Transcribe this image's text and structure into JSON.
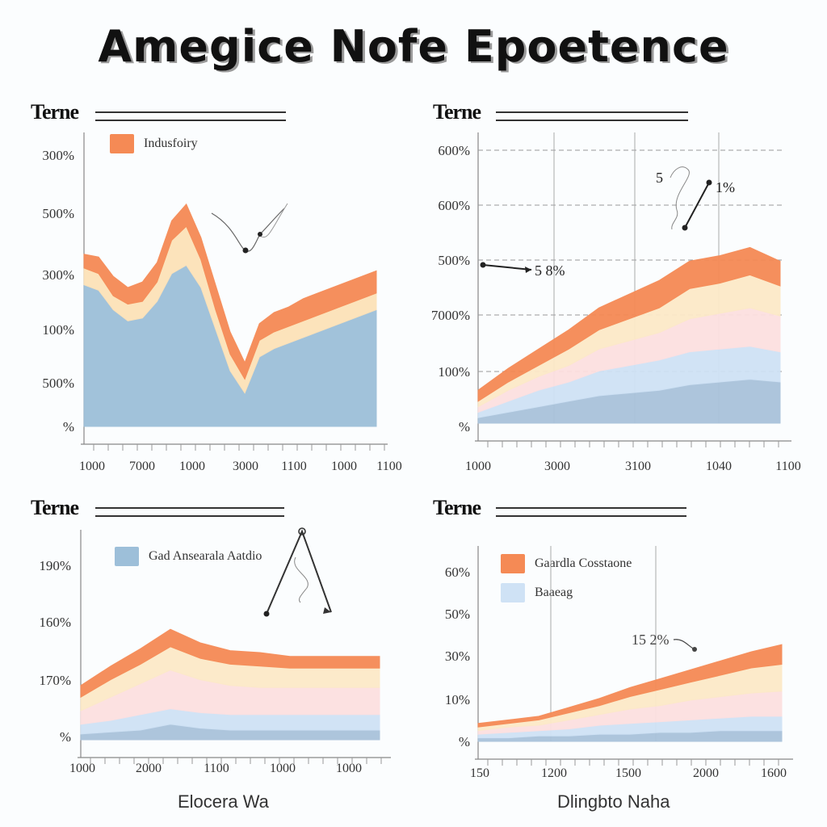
{
  "title": "Amegice Nofe Epoetence",
  "chart_data": [
    {
      "type": "area",
      "heading": "Terne",
      "legend": [
        {
          "label": "Indusfoiry",
          "color": "#f58a55"
        }
      ],
      "y_ticks": [
        "300%",
        "500%",
        "300%",
        "100%",
        "500%",
        "%"
      ],
      "x_ticks": [
        "1000",
        "7000",
        "1000",
        "3000",
        "1100",
        "1000",
        "1100"
      ],
      "x": [
        0,
        0.05,
        0.1,
        0.15,
        0.2,
        0.25,
        0.3,
        0.35,
        0.4,
        0.45,
        0.5,
        0.55,
        0.6,
        0.65,
        0.7,
        0.75,
        0.8,
        0.85,
        0.9,
        0.95,
        1.0
      ],
      "series": [
        {
          "color": "#9dbfd9",
          "values": [
            0.51,
            0.49,
            0.42,
            0.38,
            0.39,
            0.45,
            0.55,
            0.58,
            0.5,
            0.35,
            0.2,
            0.12,
            0.25,
            0.28,
            0.3,
            0.32,
            0.34,
            0.36,
            0.38,
            0.4,
            0.42
          ]
        },
        {
          "color": "#fde2b8",
          "values": [
            0.06,
            0.06,
            0.05,
            0.06,
            0.06,
            0.07,
            0.12,
            0.14,
            0.1,
            0.07,
            0.06,
            0.05,
            0.06,
            0.06,
            0.06,
            0.06,
            0.06,
            0.06,
            0.06,
            0.06,
            0.06
          ]
        },
        {
          "color": "#f58a55",
          "values": [
            0.05,
            0.06,
            0.07,
            0.06,
            0.07,
            0.07,
            0.07,
            0.08,
            0.08,
            0.09,
            0.08,
            0.06,
            0.06,
            0.07,
            0.07,
            0.08,
            0.08,
            0.08,
            0.08,
            0.08,
            0.08
          ]
        }
      ]
    },
    {
      "type": "area",
      "heading": "Terne",
      "legend": [],
      "y_ticks": [
        "600%",
        "600%",
        "500%",
        "7000%",
        "100%",
        "%"
      ],
      "x_ticks": [
        "1000",
        "3000",
        "3100",
        "1040",
        "1100"
      ],
      "annotations": [
        "5",
        "1%",
        "5 8%"
      ],
      "x": [
        0,
        0.1,
        0.2,
        0.3,
        0.4,
        0.5,
        0.6,
        0.7,
        0.8,
        0.9,
        1.0
      ],
      "series": [
        {
          "color": "#a9c3db",
          "values": [
            0.02,
            0.04,
            0.06,
            0.08,
            0.1,
            0.11,
            0.12,
            0.14,
            0.15,
            0.16,
            0.15
          ]
        },
        {
          "color": "#cfe2f5",
          "values": [
            0.02,
            0.04,
            0.06,
            0.07,
            0.09,
            0.1,
            0.11,
            0.12,
            0.12,
            0.12,
            0.11
          ]
        },
        {
          "color": "#fde0e0",
          "values": [
            0.02,
            0.04,
            0.05,
            0.06,
            0.08,
            0.09,
            0.1,
            0.12,
            0.13,
            0.14,
            0.13
          ]
        },
        {
          "color": "#fde9c8",
          "values": [
            0.02,
            0.03,
            0.04,
            0.06,
            0.07,
            0.08,
            0.09,
            0.11,
            0.11,
            0.12,
            0.11
          ]
        },
        {
          "color": "#f58a55",
          "values": [
            0.04,
            0.05,
            0.06,
            0.07,
            0.08,
            0.09,
            0.1,
            0.1,
            0.1,
            0.1,
            0.09
          ]
        }
      ]
    },
    {
      "type": "area",
      "heading": "Terne",
      "legend": [
        {
          "label": "Gad Ansearala Aatdio",
          "color": "#9dbfd9"
        }
      ],
      "y_ticks": [
        "190%",
        "160%",
        "170%",
        "%"
      ],
      "x_ticks": [
        "1000",
        "2000",
        "1100",
        "1000",
        "1000"
      ],
      "footer": "Elocera Wa",
      "x": [
        0,
        0.1,
        0.2,
        0.3,
        0.4,
        0.5,
        0.6,
        0.7,
        0.8,
        0.9,
        1.0
      ],
      "series": [
        {
          "color": "#a9c3db",
          "values": [
            0.03,
            0.04,
            0.05,
            0.08,
            0.06,
            0.05,
            0.05,
            0.05,
            0.05,
            0.05,
            0.05
          ]
        },
        {
          "color": "#cfe2f5",
          "values": [
            0.05,
            0.06,
            0.08,
            0.08,
            0.08,
            0.08,
            0.08,
            0.08,
            0.08,
            0.08,
            0.08
          ]
        },
        {
          "color": "#fde0e0",
          "values": [
            0.07,
            0.12,
            0.16,
            0.2,
            0.17,
            0.15,
            0.14,
            0.14,
            0.14,
            0.14,
            0.14
          ]
        },
        {
          "color": "#fde9c8",
          "values": [
            0.07,
            0.09,
            0.1,
            0.12,
            0.11,
            0.11,
            0.11,
            0.1,
            0.1,
            0.1,
            0.1
          ]
        },
        {
          "color": "#f58a55",
          "values": [
            0.06,
            0.07,
            0.08,
            0.09,
            0.08,
            0.07,
            0.07,
            0.06,
            0.06,
            0.06,
            0.06
          ]
        }
      ]
    },
    {
      "type": "area",
      "heading": "Terne",
      "legend": [
        {
          "label": "Gaardla Cosstaone",
          "color": "#f58a55"
        },
        {
          "label": "Baaeag",
          "color": "#cfe2f5"
        }
      ],
      "y_ticks": [
        "60%",
        "50%",
        "30%",
        "10%",
        "%"
      ],
      "x_ticks": [
        "150",
        "1200",
        "1500",
        "2000",
        "1600"
      ],
      "annotations": [
        "15 2%"
      ],
      "footer": "Dlingbto Naha",
      "x": [
        0,
        0.1,
        0.2,
        0.3,
        0.4,
        0.5,
        0.6,
        0.7,
        0.8,
        0.9,
        1.0
      ],
      "series": [
        {
          "color": "#a9c3db",
          "values": [
            0.02,
            0.02,
            0.03,
            0.03,
            0.04,
            0.04,
            0.05,
            0.05,
            0.06,
            0.06,
            0.06
          ]
        },
        {
          "color": "#cfe2f5",
          "values": [
            0.02,
            0.03,
            0.03,
            0.04,
            0.05,
            0.06,
            0.06,
            0.07,
            0.07,
            0.08,
            0.08
          ]
        },
        {
          "color": "#fde0e0",
          "values": [
            0.02,
            0.03,
            0.03,
            0.05,
            0.06,
            0.08,
            0.09,
            0.11,
            0.12,
            0.13,
            0.14
          ]
        },
        {
          "color": "#fde9c8",
          "values": [
            0.02,
            0.02,
            0.03,
            0.04,
            0.05,
            0.07,
            0.09,
            0.1,
            0.12,
            0.14,
            0.15
          ]
        },
        {
          "color": "#f58a55",
          "values": [
            0.02,
            0.02,
            0.02,
            0.03,
            0.04,
            0.05,
            0.06,
            0.07,
            0.08,
            0.09,
            0.11
          ]
        }
      ]
    }
  ]
}
